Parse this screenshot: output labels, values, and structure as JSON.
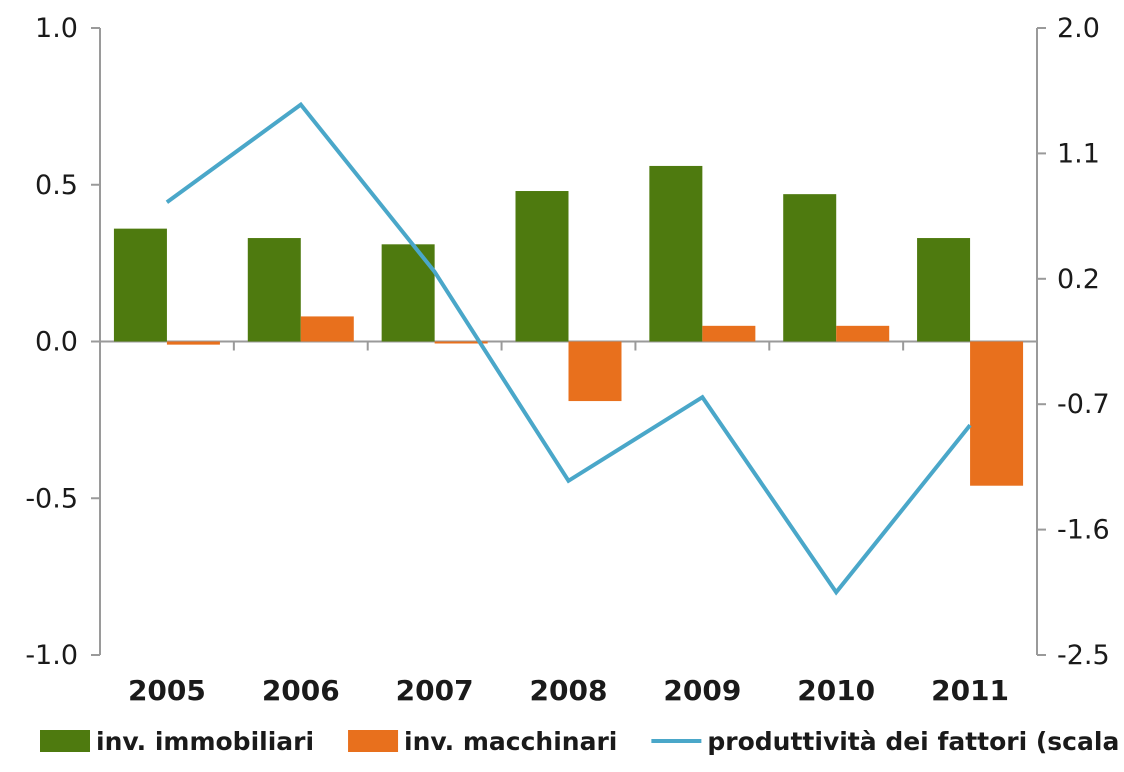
{
  "chart_data": {
    "type": "bar",
    "title": "",
    "categories": [
      "2005",
      "2006",
      "2007",
      "2008",
      "2009",
      "2010",
      "2011"
    ],
    "series": [
      {
        "name": "inv. immobiliari",
        "kind": "bar",
        "axis": "left",
        "color": "#4e7a0f",
        "values": [
          0.36,
          0.33,
          0.31,
          0.48,
          0.56,
          0.47,
          0.33
        ]
      },
      {
        "name": "inv. macchinari",
        "kind": "bar",
        "axis": "left",
        "color": "#e8701d",
        "values": [
          -0.01,
          0.08,
          -0.005,
          -0.19,
          0.05,
          0.05,
          -0.46
        ]
      },
      {
        "name": "produttività dei fattori (scala ds)",
        "kind": "line",
        "axis": "right",
        "color": "#4aa7c9",
        "values": [
          0.75,
          1.45,
          0.25,
          -1.25,
          -0.65,
          -2.05,
          -0.85
        ]
      }
    ],
    "y_left": {
      "min": -1.0,
      "max": 1.0,
      "ticks": [
        "1.0",
        "0.5",
        "0.0",
        "-0.5",
        "-1.0"
      ],
      "tick_values": [
        1.0,
        0.5,
        0.0,
        -0.5,
        -1.0
      ]
    },
    "y_right": {
      "min": -2.5,
      "max": 2.0,
      "ticks": [
        "2.0",
        "1.1",
        "0.2",
        "-0.7",
        "-1.6",
        "-2.5"
      ],
      "tick_values": [
        2.0,
        1.1,
        0.2,
        -0.7,
        -1.6,
        -2.5
      ]
    },
    "grid": false,
    "legend_position": "bottom"
  }
}
